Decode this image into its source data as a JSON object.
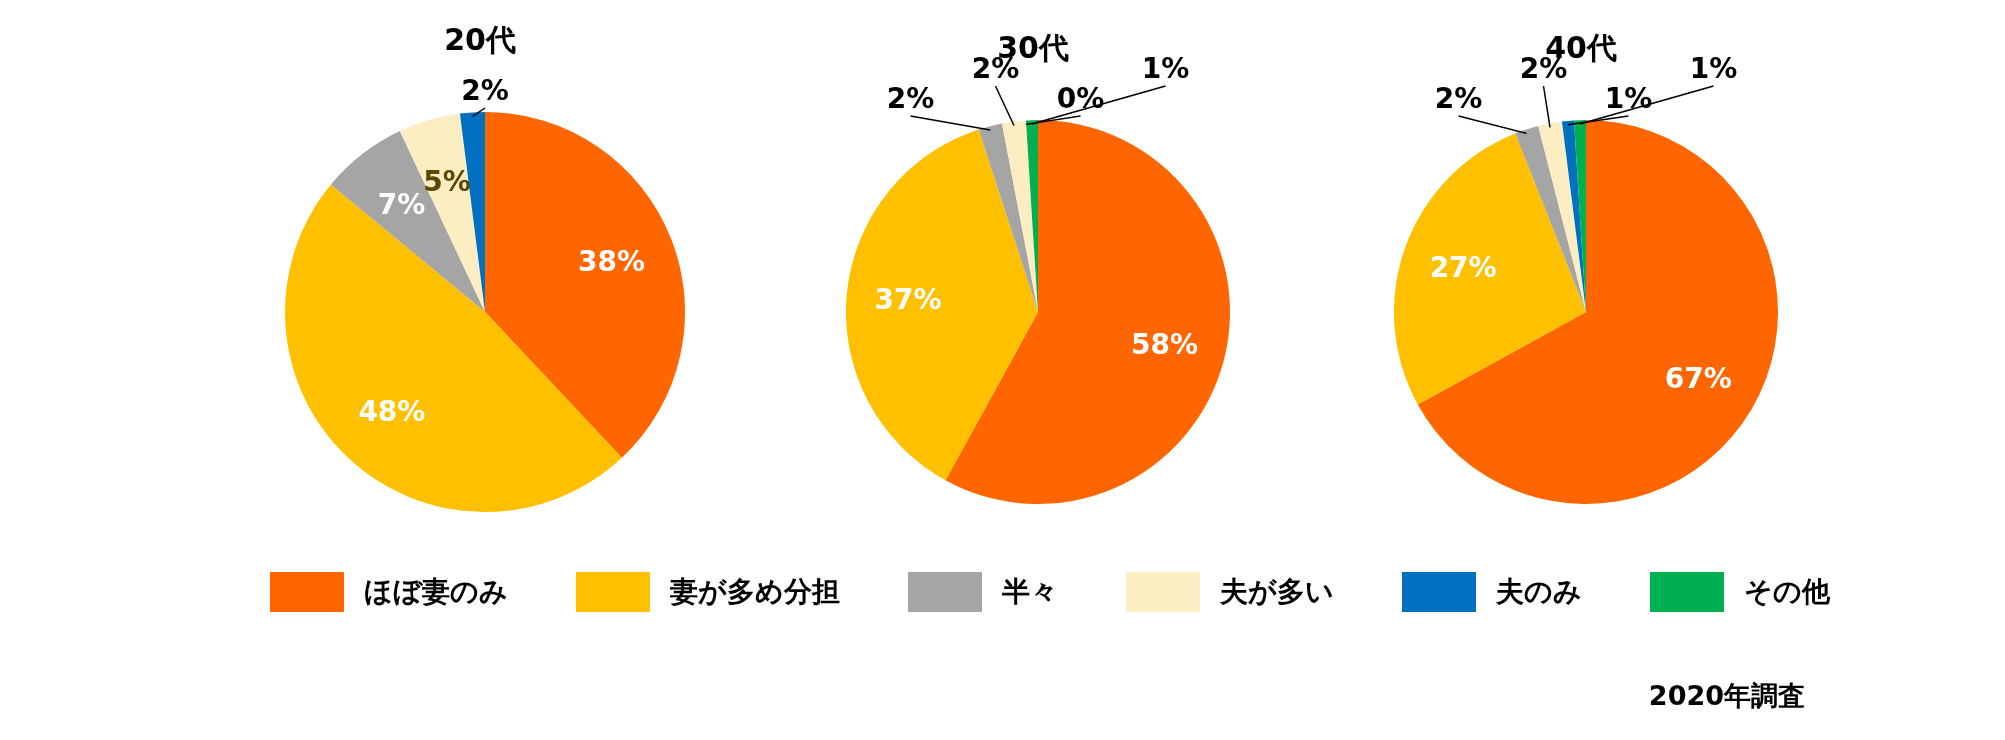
{
  "chart_data": [
    {
      "type": "pie",
      "title": "20代",
      "categories": [
        "ほぼ妻のみ",
        "妻が多め分担",
        "半々",
        "夫が多い",
        "夫のみ",
        "その他"
      ],
      "values": [
        38,
        48,
        7,
        5,
        2,
        0
      ],
      "value_labels": [
        "38%",
        "48%",
        "7%",
        "5%",
        "2%",
        null
      ],
      "colors": [
        "#ff6600",
        "#ffc000",
        "#a5a5a5",
        "#fdedc2",
        "#0070c0",
        "#00b050"
      ],
      "legend": "bottom"
    },
    {
      "type": "pie",
      "title": "30代",
      "categories": [
        null,
        null,
        null,
        null,
        null,
        null
      ],
      "values": [
        58,
        37,
        2,
        2,
        0,
        1
      ],
      "value_labels": [
        "58%",
        "37%",
        "2%",
        "2%",
        "0%",
        "1%"
      ],
      "colors": [
        "#ff6600",
        "#ffc000",
        "#a5a5a5",
        "#fdedc2",
        "#0070c0",
        "#00b050"
      ]
    },
    {
      "type": "pie",
      "title": "40代",
      "categories": [
        null,
        null,
        null,
        null,
        null,
        null
      ],
      "values": [
        67,
        27,
        2,
        2,
        1,
        1
      ],
      "value_labels": [
        "67%",
        "27%",
        "2%",
        "2%",
        "1%",
        "1%"
      ],
      "colors": [
        "#ff6600",
        "#ffc000",
        "#a5a5a5",
        "#fdedc2",
        "#0070c0",
        "#00b050"
      ],
      "annotations": [
        "2020年調査"
      ]
    }
  ]
}
